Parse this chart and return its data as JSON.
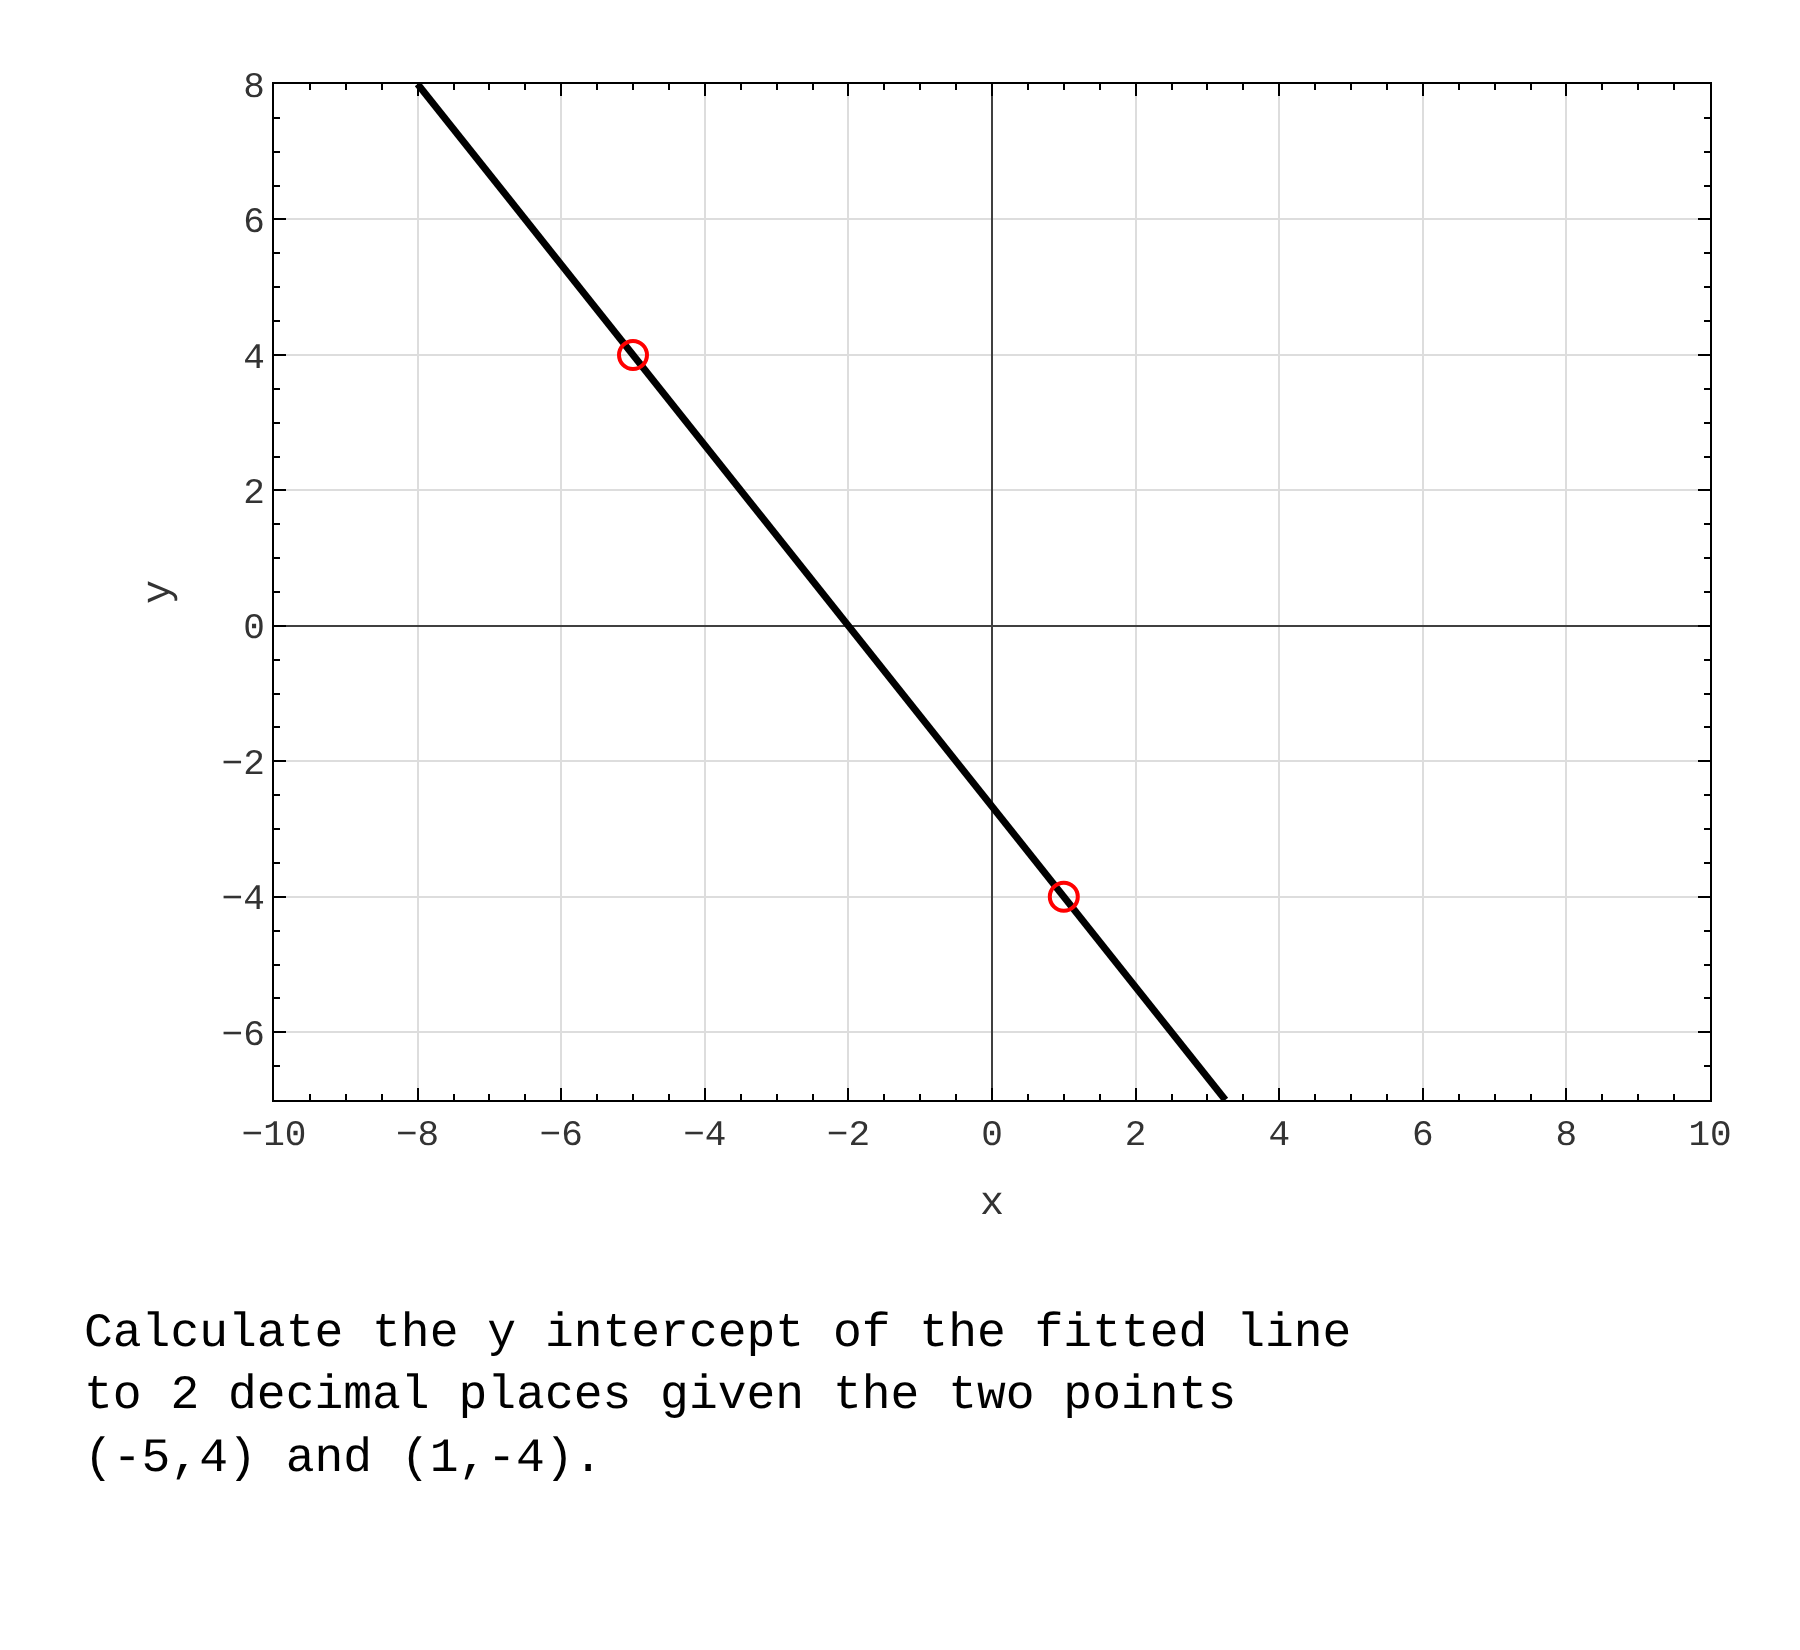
{
  "chart_data": {
    "type": "line",
    "xlabel": "x",
    "ylabel": "y",
    "xlim": [
      -10,
      10
    ],
    "xticks": [
      -10,
      -8,
      -6,
      -4,
      -2,
      0,
      2,
      4,
      6,
      8,
      10
    ],
    "ylim": [
      -7,
      8
    ],
    "yticks": [
      -6,
      -4,
      -2,
      0,
      2,
      4,
      6,
      8
    ],
    "grid": true,
    "legend": false,
    "series": [
      {
        "type": "line",
        "x": [
          -8,
          3.25
        ],
        "values": [
          8,
          -7
        ],
        "color": "#000000",
        "marker": "none",
        "line_style": "solid"
      },
      {
        "type": "scatter",
        "x": [
          -5,
          1
        ],
        "values": [
          4,
          -4
        ],
        "color": "#ff0000",
        "marker": "circle"
      }
    ],
    "annotations": [
      "Calculate the y intercept of the fitted line\nto 2 decimal places given the two points\n(-5,4) and (1,-4)."
    ]
  }
}
